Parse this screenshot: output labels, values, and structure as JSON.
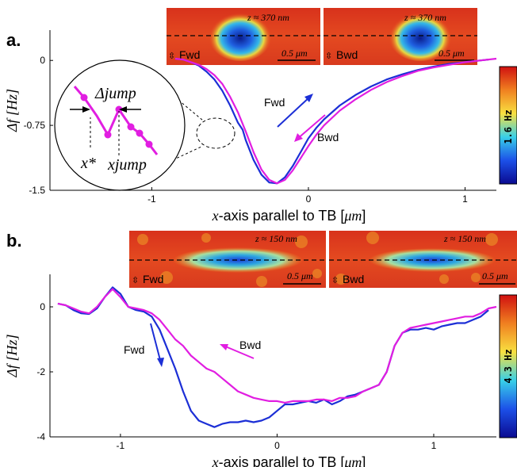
{
  "colors": {
    "fwd": "#1c2fd6",
    "bwd": "#e11ee1",
    "arrow_fwd": "#1c2fd6",
    "arrow_bwd": "#e11ee1"
  },
  "chart_data": [
    {
      "panel": "a.",
      "type": "line",
      "xlabel_math": "x",
      "xlabel_rest": "-axis parallel to TB [",
      "xlabel_unit": "μm",
      "xlabel_close": "]",
      "ylabel": "Δf [Hz]",
      "xlim": [
        -1.65,
        1.2
      ],
      "ylim": [
        -1.5,
        0.35
      ],
      "xticks": [
        -1,
        0,
        1
      ],
      "xtick_labels": [
        "-1",
        "0",
        "1"
      ],
      "yticks": [
        0,
        -0.75,
        -1.5
      ],
      "ytick_labels": [
        "0",
        "-0.75",
        "-1.5"
      ],
      "series": [
        {
          "name": "Fwd",
          "x": [
            -0.85,
            -0.8,
            -0.75,
            -0.7,
            -0.65,
            -0.6,
            -0.55,
            -0.5,
            -0.45,
            -0.42,
            -0.4,
            -0.35,
            -0.3,
            -0.25,
            -0.2,
            -0.15,
            -0.1,
            -0.05,
            0.0,
            0.05,
            0.1,
            0.2,
            0.3,
            0.4,
            0.5,
            0.6,
            0.7,
            0.8,
            0.9,
            1.0,
            1.1,
            1.15
          ],
          "y": [
            0.02,
            0.01,
            -0.02,
            -0.06,
            -0.13,
            -0.22,
            -0.35,
            -0.52,
            -0.72,
            -0.8,
            -0.92,
            -1.15,
            -1.32,
            -1.41,
            -1.42,
            -1.35,
            -1.22,
            -1.06,
            -0.9,
            -0.78,
            -0.68,
            -0.52,
            -0.4,
            -0.3,
            -0.22,
            -0.16,
            -0.11,
            -0.07,
            -0.04,
            -0.02,
            0.0,
            0.01
          ]
        },
        {
          "name": "Bwd",
          "x": [
            -0.85,
            -0.8,
            -0.75,
            -0.7,
            -0.65,
            -0.6,
            -0.55,
            -0.5,
            -0.45,
            -0.4,
            -0.35,
            -0.3,
            -0.25,
            -0.2,
            -0.15,
            -0.1,
            -0.05,
            0.0,
            0.05,
            0.1,
            0.2,
            0.3,
            0.4,
            0.5,
            0.6,
            0.7,
            0.8,
            0.9,
            1.0,
            1.1,
            1.2
          ],
          "y": [
            0.02,
            0.01,
            -0.02,
            -0.05,
            -0.1,
            -0.17,
            -0.27,
            -0.42,
            -0.6,
            -0.82,
            -1.06,
            -1.26,
            -1.38,
            -1.42,
            -1.38,
            -1.27,
            -1.13,
            -0.99,
            -0.86,
            -0.75,
            -0.58,
            -0.45,
            -0.34,
            -0.25,
            -0.18,
            -0.12,
            -0.08,
            -0.05,
            -0.02,
            0.0,
            0.02
          ]
        }
      ],
      "annotations": {
        "fwd_label": "Fwd",
        "bwd_label": "Bwd",
        "delta_jump": "Δjump",
        "x_star": "x*",
        "x_jump": "xjump"
      },
      "insets": [
        {
          "tag": "Fwd",
          "z_label": "z ≈ 370 nm",
          "scale_label": "0.5 μm"
        },
        {
          "tag": "Bwd",
          "z_label": "z ≈ 370 nm",
          "scale_label": "0.5 μm"
        }
      ],
      "colorbar_label": "1.6 Hz"
    },
    {
      "panel": "b.",
      "type": "line",
      "xlabel_math": "x",
      "xlabel_rest": "-axis parallel to TB [",
      "xlabel_unit": "μm",
      "xlabel_close": "]",
      "ylabel": "Δf [Hz]",
      "xlim": [
        -1.45,
        1.4
      ],
      "ylim": [
        -4,
        1
      ],
      "xticks": [
        -1,
        0,
        1
      ],
      "xtick_labels": [
        "-1",
        "0",
        "1"
      ],
      "yticks": [
        0,
        -2,
        -4
      ],
      "ytick_labels": [
        "0",
        "-2",
        "-4"
      ],
      "series": [
        {
          "name": "Fwd",
          "x": [
            -1.4,
            -1.35,
            -1.3,
            -1.25,
            -1.2,
            -1.15,
            -1.1,
            -1.05,
            -1.0,
            -0.95,
            -0.9,
            -0.85,
            -0.8,
            -0.75,
            -0.7,
            -0.65,
            -0.6,
            -0.55,
            -0.5,
            -0.45,
            -0.4,
            -0.35,
            -0.3,
            -0.25,
            -0.2,
            -0.15,
            -0.1,
            -0.05,
            0.0,
            0.05,
            0.1,
            0.15,
            0.2,
            0.25,
            0.3,
            0.35,
            0.4,
            0.45,
            0.5,
            0.55,
            0.6,
            0.65,
            0.7,
            0.75,
            0.8,
            0.85,
            0.9,
            0.95,
            1.0,
            1.05,
            1.1,
            1.15,
            1.2,
            1.25,
            1.3,
            1.35
          ],
          "y": [
            0.1,
            0.05,
            -0.1,
            -0.2,
            -0.22,
            -0.05,
            0.3,
            0.6,
            0.4,
            0.0,
            -0.1,
            -0.15,
            -0.3,
            -0.7,
            -1.3,
            -1.9,
            -2.6,
            -3.2,
            -3.5,
            -3.6,
            -3.7,
            -3.6,
            -3.55,
            -3.55,
            -3.5,
            -3.55,
            -3.5,
            -3.4,
            -3.2,
            -3.0,
            -3.0,
            -2.95,
            -2.9,
            -2.95,
            -2.85,
            -3.0,
            -2.9,
            -2.75,
            -2.7,
            -2.6,
            -2.5,
            -2.4,
            -2.0,
            -1.2,
            -0.8,
            -0.7,
            -0.7,
            -0.65,
            -0.7,
            -0.6,
            -0.55,
            -0.5,
            -0.5,
            -0.4,
            -0.3,
            -0.1
          ]
        },
        {
          "name": "Bwd",
          "x": [
            -1.4,
            -1.35,
            -1.3,
            -1.25,
            -1.2,
            -1.15,
            -1.1,
            -1.05,
            -1.0,
            -0.95,
            -0.9,
            -0.85,
            -0.8,
            -0.75,
            -0.7,
            -0.65,
            -0.6,
            -0.55,
            -0.5,
            -0.45,
            -0.4,
            -0.35,
            -0.3,
            -0.25,
            -0.2,
            -0.15,
            -0.1,
            -0.05,
            0.0,
            0.05,
            0.1,
            0.15,
            0.2,
            0.25,
            0.3,
            0.35,
            0.4,
            0.45,
            0.5,
            0.55,
            0.6,
            0.65,
            0.7,
            0.75,
            0.8,
            0.85,
            0.9,
            0.95,
            1.0,
            1.05,
            1.1,
            1.15,
            1.2,
            1.25,
            1.3,
            1.35,
            1.4
          ],
          "y": [
            0.1,
            0.05,
            -0.05,
            -0.15,
            -0.2,
            0.0,
            0.3,
            0.55,
            0.3,
            0.0,
            -0.05,
            -0.1,
            -0.2,
            -0.4,
            -0.7,
            -1.0,
            -1.2,
            -1.5,
            -1.7,
            -1.9,
            -2.0,
            -2.2,
            -2.4,
            -2.6,
            -2.7,
            -2.8,
            -2.85,
            -2.9,
            -2.9,
            -2.95,
            -2.9,
            -2.9,
            -2.9,
            -2.85,
            -2.85,
            -2.9,
            -2.8,
            -2.8,
            -2.75,
            -2.6,
            -2.5,
            -2.4,
            -2.0,
            -1.2,
            -0.8,
            -0.65,
            -0.6,
            -0.55,
            -0.5,
            -0.45,
            -0.4,
            -0.35,
            -0.3,
            -0.3,
            -0.2,
            -0.05,
            0.0
          ]
        }
      ],
      "annotations": {
        "fwd_label": "Fwd",
        "bwd_label": "Bwd"
      },
      "insets": [
        {
          "tag": "Fwd",
          "z_label": "z ≈ 150 nm",
          "scale_label": "0.5 μm"
        },
        {
          "tag": "Bwd",
          "z_label": "z ≈ 150 nm",
          "scale_label": "0.5 μm"
        }
      ],
      "colorbar_label": "4.3 Hz"
    }
  ]
}
